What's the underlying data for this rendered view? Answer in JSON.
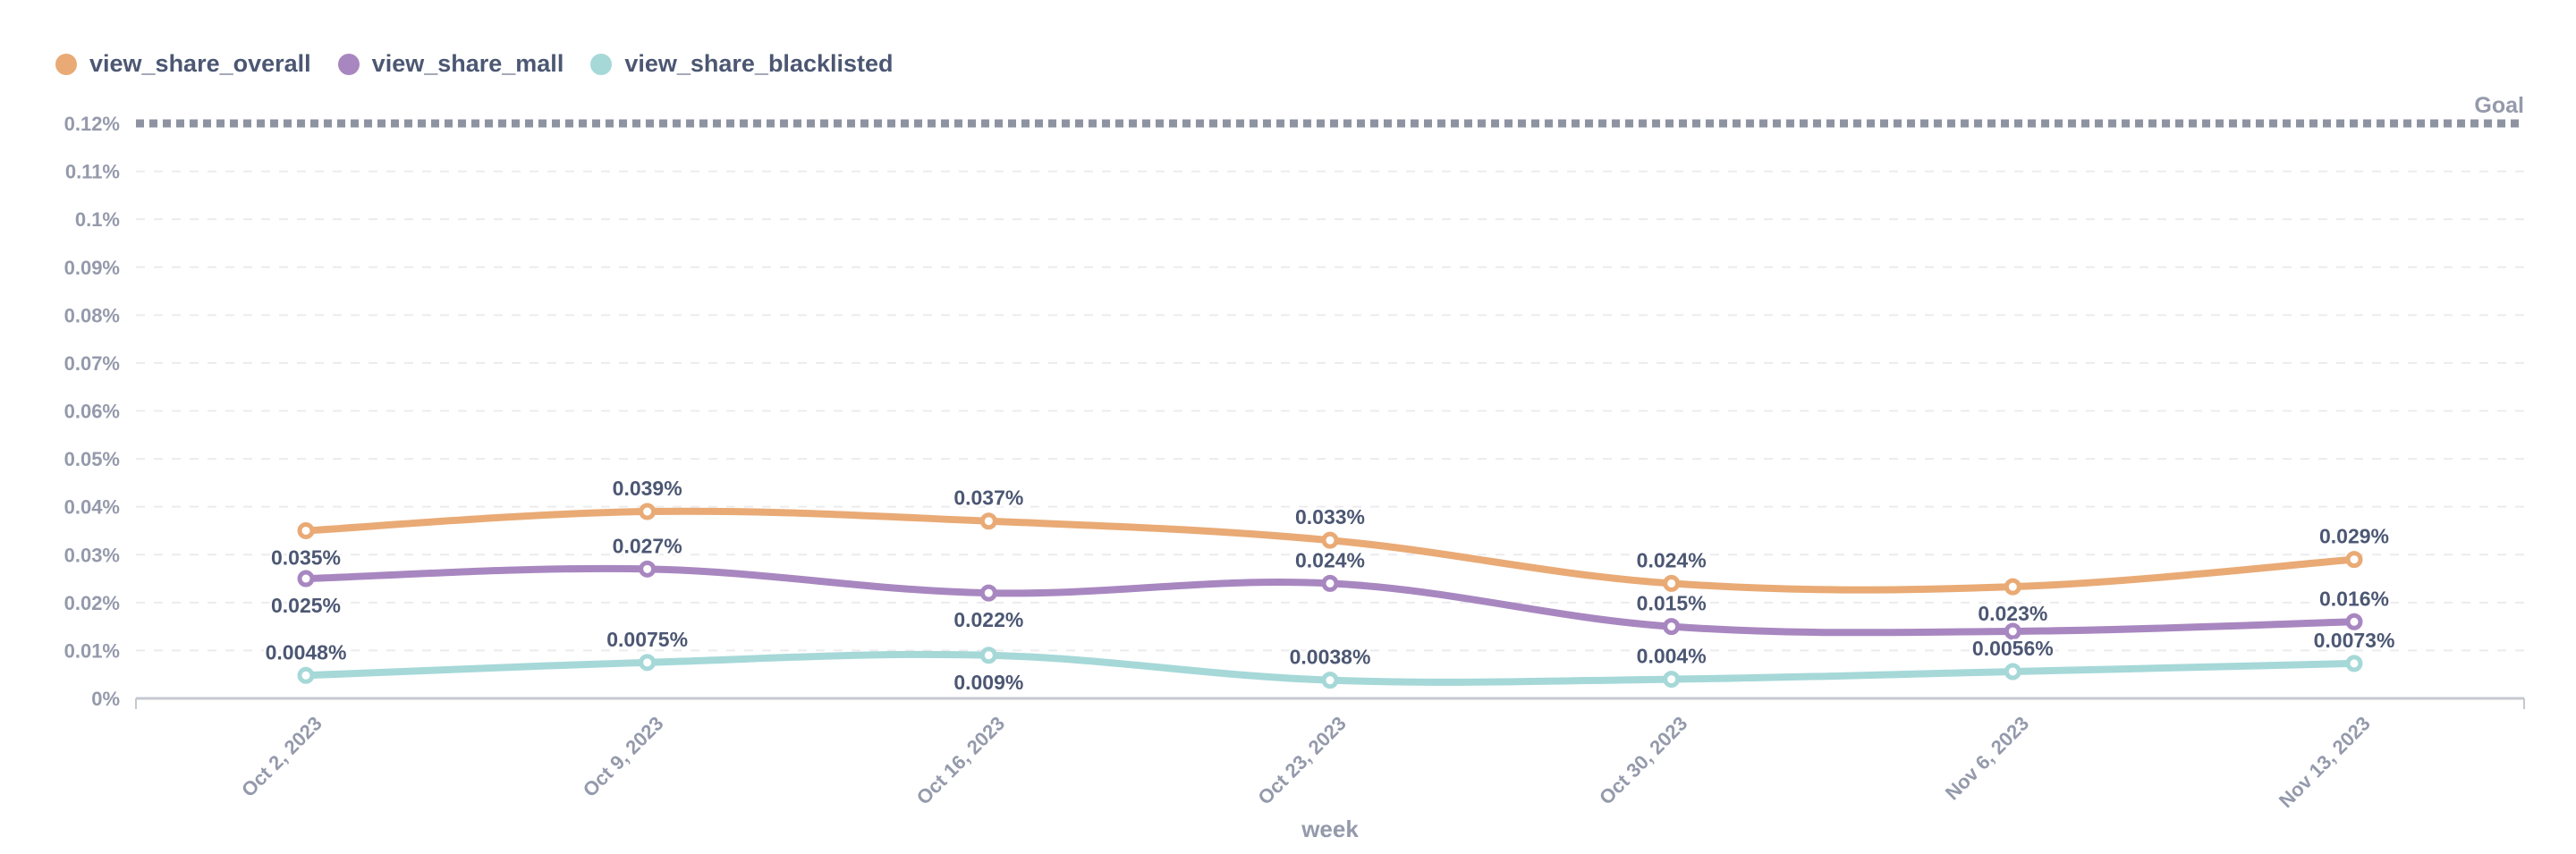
{
  "legend": [
    {
      "label": "view_share_overall",
      "color": "#E9AA75"
    },
    {
      "label": "view_share_mall",
      "color": "#A887C0"
    },
    {
      "label": "view_share_blacklisted",
      "color": "#A6D8D8"
    }
  ],
  "chart_data": {
    "type": "line",
    "title": "",
    "xlabel": "week",
    "ylabel": "",
    "ylim": [
      0,
      0.12
    ],
    "grid": true,
    "legend_position": "top-left",
    "y_ticks": [
      "0%",
      "0.01%",
      "0.02%",
      "0.03%",
      "0.04%",
      "0.05%",
      "0.06%",
      "0.07%",
      "0.08%",
      "0.09%",
      "0.1%",
      "0.11%",
      "0.12%"
    ],
    "y_tick_values": [
      0,
      0.01,
      0.02,
      0.03,
      0.04,
      0.05,
      0.06,
      0.07,
      0.08,
      0.09,
      0.1,
      0.11,
      0.12
    ],
    "categories": [
      "Oct 2, 2023",
      "Oct 9, 2023",
      "Oct 16, 2023",
      "Oct 23, 2023",
      "Oct 30, 2023",
      "Nov 6, 2023",
      "Nov 13, 2023"
    ],
    "goal": {
      "label": "Goal",
      "value": 0.12
    },
    "series": [
      {
        "name": "view_share_overall",
        "color": "#E9AA75",
        "values": [
          0.035,
          0.039,
          0.037,
          0.033,
          0.024,
          0.0233,
          0.029
        ],
        "labels": [
          "0.035%",
          "0.039%",
          "0.037%",
          "0.033%",
          "0.024%",
          "0.023%",
          "0.029%"
        ],
        "label_side": [
          "below",
          "above",
          "above",
          "above",
          "above",
          "below",
          "above"
        ]
      },
      {
        "name": "view_share_mall",
        "color": "#A887C0",
        "values": [
          0.025,
          0.027,
          0.022,
          0.024,
          0.015,
          0.014,
          0.016
        ],
        "labels": [
          "0.025%",
          "0.027%",
          "0.022%",
          "0.024%",
          "0.015%",
          null,
          "0.016%"
        ],
        "label_side": [
          "below",
          "above",
          "below",
          "above",
          "above",
          "above",
          "above"
        ]
      },
      {
        "name": "view_share_blacklisted",
        "color": "#A6D8D8",
        "values": [
          0.0048,
          0.0075,
          0.009,
          0.0038,
          0.004,
          0.0056,
          0.0073
        ],
        "labels": [
          "0.0048%",
          "0.0075%",
          "0.009%",
          "0.0038%",
          "0.004%",
          "0.0056%",
          "0.0073%"
        ],
        "label_side": [
          "above",
          "above",
          "below",
          "above",
          "above",
          "above",
          "above"
        ]
      }
    ]
  }
}
